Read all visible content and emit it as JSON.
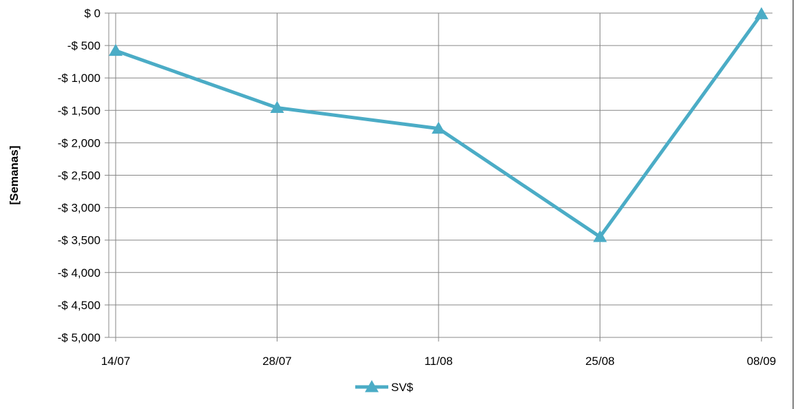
{
  "chart_data": {
    "type": "line",
    "title": "",
    "xlabel": "",
    "ylabel": "[Semanas]",
    "categories": [
      "14/07",
      "28/07",
      "11/08",
      "25/08",
      "08/09"
    ],
    "series": [
      {
        "name": "SV$",
        "values": [
          -580,
          -1460,
          -1780,
          -3450,
          -15
        ],
        "color": "#4BACC6",
        "marker": "triangle"
      }
    ],
    "ylim": [
      -5000,
      0
    ],
    "y_ticks": [
      0,
      -500,
      -1000,
      -1500,
      -2000,
      -2500,
      -3000,
      -3500,
      -4000,
      -4500,
      -5000
    ],
    "y_tick_labels": [
      "$ 0",
      "-$ 500",
      "-$ 1,000",
      "-$ 1,500",
      "-$ 2,000",
      "-$ 2,500",
      "-$ 3,000",
      "-$ 3,500",
      "-$ 4,000",
      "-$ 4,500",
      "-$ 5,000"
    ],
    "grid": true,
    "legend_position": "bottom"
  }
}
